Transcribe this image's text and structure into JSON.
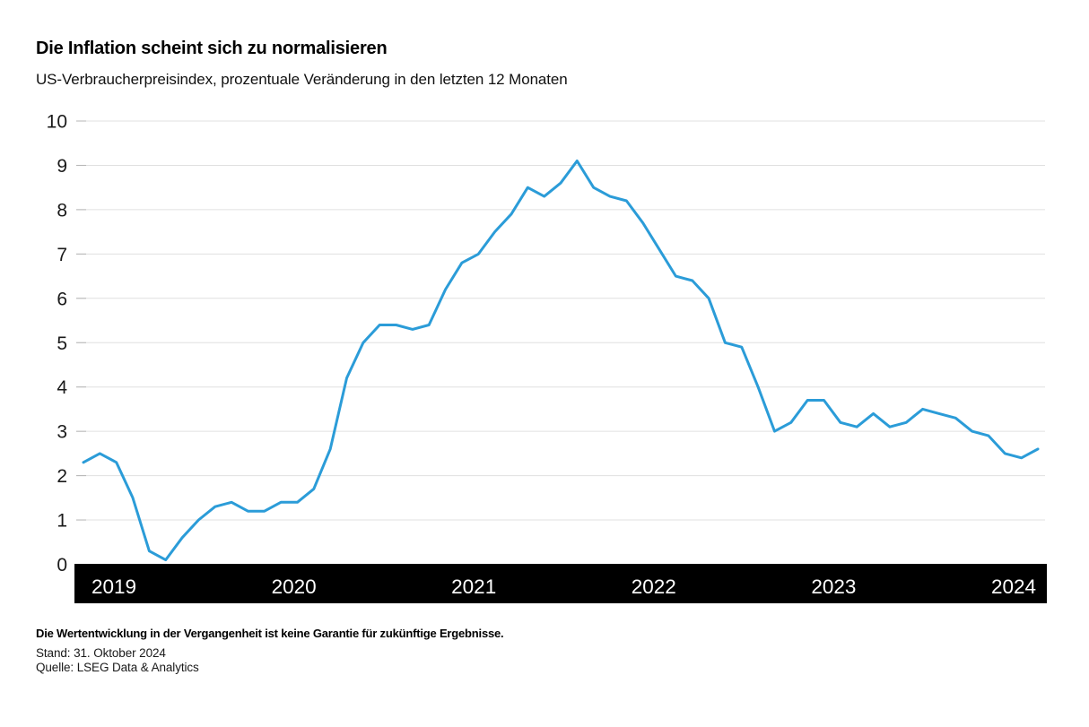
{
  "header": {
    "title": "Die Inflation scheint sich zu normalisieren",
    "subtitle": "US-Verbraucherpreisindex, prozentuale Veränderung in den letzten 12 Monaten"
  },
  "chart_data": {
    "type": "line",
    "title": "Die Inflation scheint sich zu normalisieren",
    "subtitle": "US-Verbraucherpreisindex, prozentuale Veränderung in den letzten 12 Monaten",
    "unit": "percent change vs. 12 months earlier",
    "grid": "horizontal",
    "legend": "none",
    "ylim": [
      0,
      10
    ],
    "y_ticks": [
      0,
      1,
      2,
      3,
      4,
      5,
      6,
      7,
      8,
      9,
      10
    ],
    "x_year_ticks": [
      "2019",
      "2020",
      "2021",
      "2022",
      "2023",
      "2024"
    ],
    "x_months": [
      "2019-12",
      "2020-01",
      "2020-02",
      "2020-03",
      "2020-04",
      "2020-05",
      "2020-06",
      "2020-07",
      "2020-08",
      "2020-09",
      "2020-10",
      "2020-11",
      "2020-12",
      "2021-01",
      "2021-02",
      "2021-03",
      "2021-04",
      "2021-05",
      "2021-06",
      "2021-07",
      "2021-08",
      "2021-09",
      "2021-10",
      "2021-11",
      "2021-12",
      "2022-01",
      "2022-02",
      "2022-03",
      "2022-04",
      "2022-05",
      "2022-06",
      "2022-07",
      "2022-08",
      "2022-09",
      "2022-10",
      "2022-11",
      "2022-12",
      "2023-01",
      "2023-02",
      "2023-03",
      "2023-04",
      "2023-05",
      "2023-06",
      "2023-07",
      "2023-08",
      "2023-09",
      "2023-10",
      "2023-11",
      "2023-12",
      "2024-01",
      "2024-02",
      "2024-03",
      "2024-04",
      "2024-05",
      "2024-06",
      "2024-07",
      "2024-08",
      "2024-09",
      "2024-10"
    ],
    "series": [
      {
        "name": "US-Verbraucherpreisindex (% Veränderung, 12 Monate)",
        "values": [
          2.3,
          2.5,
          2.3,
          1.5,
          0.3,
          0.1,
          0.6,
          1.0,
          1.3,
          1.4,
          1.2,
          1.2,
          1.4,
          1.4,
          1.7,
          2.6,
          4.2,
          5.0,
          5.4,
          5.4,
          5.3,
          5.4,
          6.2,
          6.8,
          7.0,
          7.5,
          7.9,
          8.5,
          8.3,
          8.6,
          9.1,
          8.5,
          8.3,
          8.2,
          7.7,
          7.1,
          6.5,
          6.4,
          6.0,
          5.0,
          4.9,
          4.0,
          3.0,
          3.2,
          3.7,
          3.7,
          3.2,
          3.1,
          3.4,
          3.1,
          3.2,
          3.5,
          3.4,
          3.3,
          3.0,
          2.9,
          2.5,
          2.4,
          2.6
        ]
      }
    ],
    "colors": {
      "line": "#2B9CD8",
      "gridline": "#e0e0e0",
      "tick": "#b5b5b5",
      "axis_label": "#1a1a1a",
      "axis_bar_background": "#000000",
      "axis_bar_text": "#ffffff"
    }
  },
  "footer": {
    "disclaimer": "Die Wertentwicklung in der Vergangenheit ist keine Garantie für zukünftige Ergebnisse.",
    "as_of": "Stand: 31. Oktober 2024",
    "source": "Quelle: LSEG Data & Analytics"
  }
}
